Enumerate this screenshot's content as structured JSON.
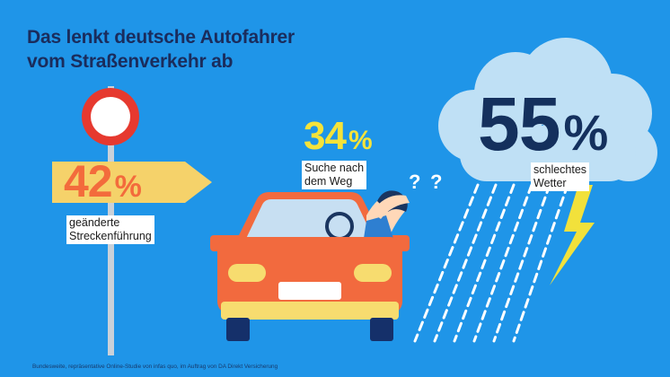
{
  "title": {
    "line1": "Das lenkt deutsche Autofahrer",
    "line2": "vom Straßenverkehr ab"
  },
  "stats": {
    "route": {
      "value": "42",
      "unit": "%",
      "label_line1": "geänderte",
      "label_line2": "Streckenführung"
    },
    "search": {
      "value": "34",
      "unit": "%",
      "label_line1": "Suche nach",
      "label_line2": "dem Weg"
    },
    "weather": {
      "value": "55",
      "unit": "%",
      "label_line1": "schlechtes",
      "label_line2": "Wetter"
    }
  },
  "decor": {
    "question_mark_1": "?",
    "question_mark_2": "?"
  },
  "footer": {
    "text": "Bundesweite, repräsentative Online-Studie von infas quo, im Auftrag von DA Direkt Versicherung"
  },
  "colors": {
    "background": "#1f95e8",
    "title": "#1a2c5c",
    "orange": "#f36b3c",
    "yellow": "#f5e33a",
    "navy": "#14305d",
    "cloud": "#bfe0f5",
    "road_sign": "#f5d26a",
    "car": "#f26a3e",
    "lightning": "#f2e13b"
  },
  "icons": [
    "no-entry-sign-icon",
    "direction-sign-icon",
    "car-icon",
    "driver-icon",
    "cloud-icon",
    "rain-icon",
    "lightning-icon"
  ]
}
